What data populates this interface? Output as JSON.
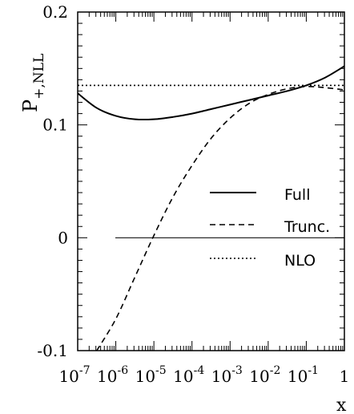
{
  "chart_data": {
    "type": "line",
    "title": "",
    "xlabel": "x",
    "ylabel": "P",
    "ylabel_sub": "+,NLL",
    "xscale": "log",
    "xlim": [
      1e-07,
      1
    ],
    "ylim": [
      -0.1,
      0.2
    ],
    "x_tick_labels": [
      {
        "base": "10",
        "exp": "-7"
      },
      {
        "base": "10",
        "exp": "-6"
      },
      {
        "base": "10",
        "exp": "-5"
      },
      {
        "base": "10",
        "exp": "-4"
      },
      {
        "base": "10",
        "exp": "-3"
      },
      {
        "base": "10",
        "exp": "-2"
      },
      {
        "base": "10",
        "exp": "-1"
      },
      {
        "base": "1",
        "exp": ""
      }
    ],
    "y_ticks": [
      -0.1,
      0,
      0.1,
      0.2
    ],
    "y_tick_labels": [
      "-0.1",
      "0",
      "0.1",
      "0.2"
    ],
    "reference_line": 0,
    "legend_position": "center-right",
    "series": [
      {
        "name": "Full",
        "style": "solid",
        "x": [
          1e-07,
          3.16e-07,
          1e-06,
          3.16e-06,
          1e-05,
          3.16e-05,
          0.0001,
          0.000316,
          0.001,
          0.00316,
          0.01,
          0.0316,
          0.1,
          0.316,
          1
        ],
        "y": [
          0.128,
          0.115,
          0.108,
          0.105,
          0.105,
          0.107,
          0.11,
          0.114,
          0.118,
          0.122,
          0.126,
          0.13,
          0.135,
          0.142,
          0.152
        ]
      },
      {
        "name": "Trunc.",
        "style": "dashed",
        "x": [
          3.16e-07,
          1e-06,
          3.16e-06,
          1e-05,
          3.16e-05,
          0.0001,
          0.000316,
          0.001,
          0.00316,
          0.01,
          0.0316,
          0.1,
          0.316,
          1
        ],
        "y": [
          -0.1,
          -0.072,
          -0.035,
          0.002,
          0.036,
          0.064,
          0.088,
          0.106,
          0.119,
          0.127,
          0.132,
          0.134,
          0.133,
          0.131
        ]
      },
      {
        "name": "NLO",
        "style": "dotted",
        "x": [
          1e-07,
          1
        ],
        "y": [
          0.135,
          0.135
        ]
      }
    ]
  }
}
